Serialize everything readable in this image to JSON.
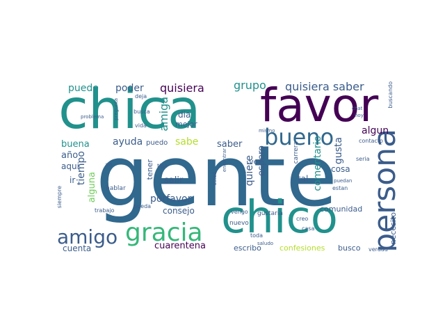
{
  "word_cloud": {
    "colors": {
      "dark_purple": "#440154",
      "blue": "#3b5c8b",
      "steel_blue": "#31688e",
      "teal": "#21918c",
      "green": "#35b779",
      "light_green": "#6ece58",
      "yellow_green": "#b5de2b"
    },
    "words": [
      {
        "text": "gente",
        "color": "#31688e"
      },
      {
        "text": "chica",
        "color": "#21918c"
      },
      {
        "text": "favor",
        "color": "#440154"
      },
      {
        "text": "chico",
        "color": "#21918c"
      },
      {
        "text": "persona",
        "color": "#3b5c8b"
      },
      {
        "text": "gracia",
        "color": "#35b779"
      },
      {
        "text": "amigo",
        "color": "#3b5c8b"
      },
      {
        "text": "bueno",
        "color": "#31688e"
      },
      {
        "text": "quisiera saber",
        "color": "#3b5c8b"
      },
      {
        "text": "quisiera",
        "color": "#440154"
      },
      {
        "text": "grupo",
        "color": "#21918c"
      },
      {
        "text": "poder",
        "color": "#3b5c8b"
      },
      {
        "text": "puede",
        "color": "#21918c"
      },
      {
        "text": "amiga",
        "color": "#21918c"
      },
      {
        "text": "ayuda",
        "color": "#3b5c8b"
      },
      {
        "text": "sabe",
        "color": "#b5de2b"
      },
      {
        "text": "saber",
        "color": "#3b5c8b"
      },
      {
        "text": "gusta",
        "color": "#3b5c8b"
      },
      {
        "text": "algun",
        "color": "#440154"
      },
      {
        "text": "buena",
        "color": "#21918c"
      },
      {
        "text": "año",
        "color": "#3b5c8b"
      },
      {
        "text": "tiempo",
        "color": "#3b5c8b"
      },
      {
        "text": "alguna",
        "color": "#6ece58"
      },
      {
        "text": "aqui",
        "color": "#3b5c8b"
      },
      {
        "text": "ir",
        "color": "#3b5c8b"
      },
      {
        "text": "dia",
        "color": "#3b5c8b"
      },
      {
        "text": "mejor",
        "color": "#3b5c8b"
      },
      {
        "text": "quiere",
        "color": "#3b5c8b"
      },
      {
        "text": "espero",
        "color": "#3b5c8b"
      },
      {
        "text": "comentario",
        "color": "#21918c"
      },
      {
        "text": "cosa",
        "color": "#3b5c8b"
      },
      {
        "text": "tal",
        "color": "#3b5c8b"
      },
      {
        "text": "salir",
        "color": "#3b5c8b"
      },
      {
        "text": "tener",
        "color": "#3b5c8b"
      },
      {
        "text": "porfavor",
        "color": "#3b5c8b"
      },
      {
        "text": "consejo",
        "color": "#3b5c8b"
      },
      {
        "text": "cuarentena",
        "color": "#440154"
      },
      {
        "text": "cuenta",
        "color": "#3b5c8b"
      },
      {
        "text": "escribo",
        "color": "#3b5c8b"
      },
      {
        "text": "confesiones",
        "color": "#b5de2b"
      },
      {
        "text": "busco",
        "color": "#3b5c8b"
      },
      {
        "text": "comunidad",
        "color": "#3b5c8b"
      },
      {
        "text": "necesito",
        "color": "#3b5c8b"
      },
      {
        "text": "hablar",
        "color": "#3b5c8b"
      },
      {
        "text": "trabajo",
        "color": "#3b5c8b"
      },
      {
        "text": "puedo",
        "color": "#3b5c8b"
      },
      {
        "text": "gustaria",
        "color": "#3b5c8b"
      },
      {
        "text": "vengo",
        "color": "#3b5c8b"
      },
      {
        "text": "nuevo",
        "color": "#3b5c8b"
      },
      {
        "text": "casa",
        "color": "#3b5c8b"
      },
      {
        "text": "verdad",
        "color": "#3b5c8b"
      },
      {
        "text": "toda",
        "color": "#3b5c8b"
      },
      {
        "text": "ver",
        "color": "#3b5c8b"
      },
      {
        "text": "tipo",
        "color": "#3b5c8b"
      },
      {
        "text": "estan",
        "color": "#3b5c8b"
      },
      {
        "text": "seria",
        "color": "#3b5c8b"
      },
      {
        "text": "contacto",
        "color": "#3b5c8b"
      },
      {
        "text": "busca",
        "color": "#3b5c8b"
      },
      {
        "text": "deja",
        "color": "#3b5c8b"
      },
      {
        "text": "vida",
        "color": "#3b5c8b"
      },
      {
        "text": "pueda",
        "color": "#3b5c8b"
      },
      {
        "text": "creo",
        "color": "#3b5c8b"
      },
      {
        "text": "tema",
        "color": "#3b5c8b"
      },
      {
        "text": "interesado",
        "color": "#3b5c8b"
      },
      {
        "text": "carrera",
        "color": "#3b5c8b"
      },
      {
        "text": "mismo",
        "color": "#3b5c8b"
      },
      {
        "text": "puedan",
        "color": "#3b5c8b"
      },
      {
        "text": "chat",
        "color": "#3b5c8b"
      },
      {
        "text": "hoy",
        "color": "#3b5c8b"
      },
      {
        "text": "saludo",
        "color": "#3b5c8b"
      },
      {
        "text": "usted",
        "color": "#3b5c8b"
      },
      {
        "text": "encontrar",
        "color": "#3b5c8b"
      },
      {
        "text": "va",
        "color": "#3b5c8b"
      },
      {
        "text": "problema",
        "color": "#3b5c8b"
      },
      {
        "text": "pregunta",
        "color": "#3b5c8b"
      },
      {
        "text": "siempre",
        "color": "#3b5c8b"
      },
      {
        "text": "buscando",
        "color": "#3b5c8b"
      }
    ]
  }
}
